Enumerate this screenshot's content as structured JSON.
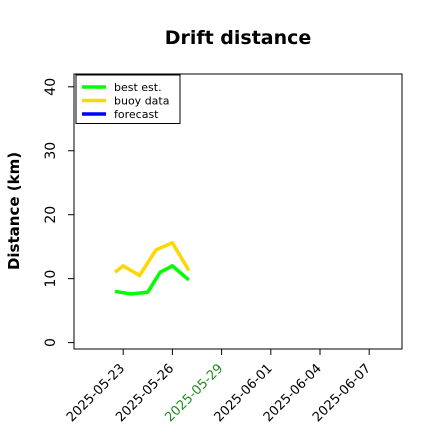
{
  "chart_data": {
    "type": "line",
    "title": "Drift distance",
    "xlabel": "",
    "ylabel": "Distance (km)",
    "xlim": [
      "2025-05-20",
      "2025-06-09"
    ],
    "ylim": [
      -1,
      42
    ],
    "yticks": [
      0,
      10,
      20,
      30,
      40
    ],
    "xticks": [
      "2025-05-23",
      "2025-05-26",
      "2025-05-29",
      "2025-06-01",
      "2025-06-04",
      "2025-06-07"
    ],
    "highlighted_xtick": "2025-05-29",
    "highlight_color": "#228B22",
    "grid": false,
    "legend": {
      "placement": "top-left",
      "entries": [
        {
          "label": "best est.",
          "color": "#00ff00"
        },
        {
          "label": "buoy data",
          "color": "#ffd700"
        },
        {
          "label": "forecast",
          "color": "#0000ff"
        }
      ]
    },
    "series": [
      {
        "name": "best est.",
        "color": "#00ff00",
        "points": [
          {
            "x": "2025-05-22 12:00",
            "y": 8.0
          },
          {
            "x": "2025-05-23 12:00",
            "y": 7.6
          },
          {
            "x": "2025-05-24 12:00",
            "y": 7.9
          },
          {
            "x": "2025-05-25 06:00",
            "y": 11.0
          },
          {
            "x": "2025-05-26 00:00",
            "y": 12.0
          },
          {
            "x": "2025-05-27 00:00",
            "y": 9.8
          }
        ]
      },
      {
        "name": "buoy data",
        "color": "#ffd700",
        "points": [
          {
            "x": "2025-05-22 12:00",
            "y": 11.0
          },
          {
            "x": "2025-05-23 00:00",
            "y": 12.0
          },
          {
            "x": "2025-05-24 00:00",
            "y": 10.5
          },
          {
            "x": "2025-05-25 00:00",
            "y": 14.5
          },
          {
            "x": "2025-05-26 00:00",
            "y": 15.6
          },
          {
            "x": "2025-05-27 00:00",
            "y": 11.3
          }
        ]
      },
      {
        "name": "forecast",
        "color": "#0000ff",
        "points": []
      }
    ]
  }
}
